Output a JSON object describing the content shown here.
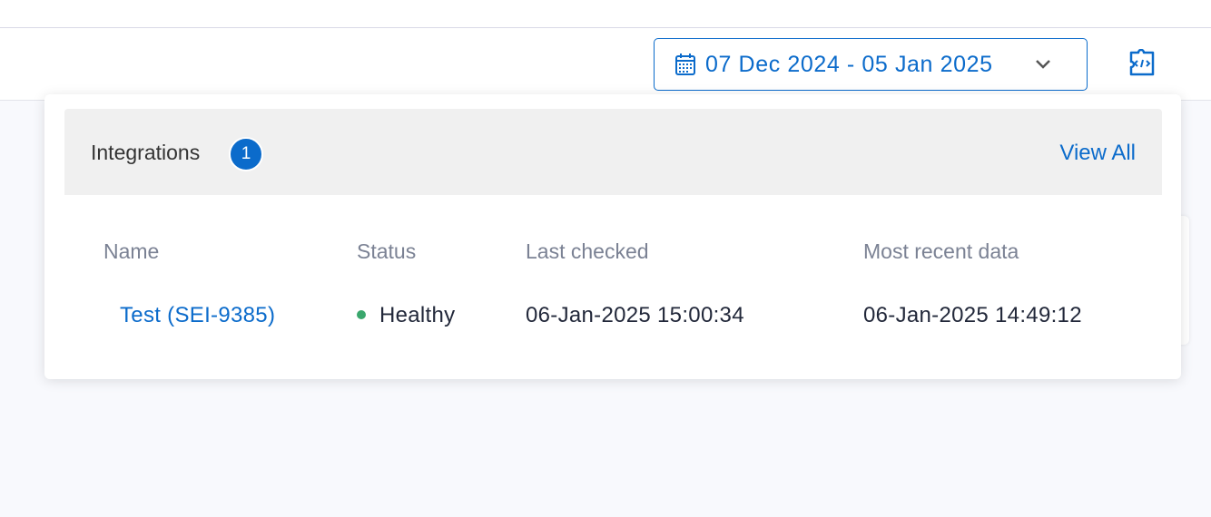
{
  "date_range": {
    "label": "07 Dec 2024 - 05 Jan 2025",
    "icon": "calendar-icon"
  },
  "toolbar": {
    "code_icon": "puzzle-code-icon"
  },
  "integrations": {
    "title": "Integrations",
    "count": "1",
    "view_all": "View All",
    "columns": [
      "Name",
      "Status",
      "Last checked",
      "Most recent data"
    ],
    "rows": [
      {
        "name": "Test (SEI-9385)",
        "status": "Healthy",
        "status_color": "#3aa76d",
        "last_checked": "06-Jan-2025 15:00:34",
        "most_recent_data": "06-Jan-2025 14:49:12"
      }
    ]
  },
  "colors": {
    "accent": "#0b6bcb"
  }
}
